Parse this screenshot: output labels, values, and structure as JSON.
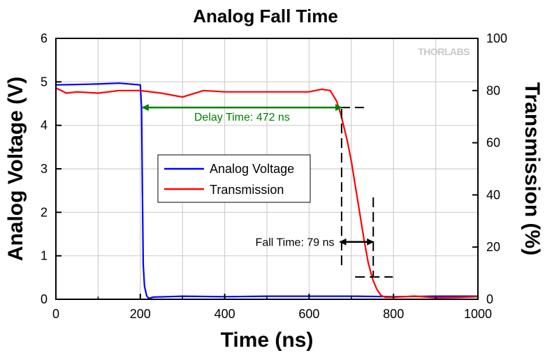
{
  "chart_data": {
    "type": "line",
    "title": "Analog Fall Time",
    "xlabel": "Time (ns)",
    "ylabel": "Analog Voltage (V)",
    "y2label": "Transmission (%)",
    "xlim": [
      0,
      1000
    ],
    "ylim": [
      0,
      6
    ],
    "y2lim": [
      0,
      100
    ],
    "x_ticks": [
      0,
      200,
      400,
      600,
      800,
      1000
    ],
    "y_ticks": [
      0,
      1,
      2,
      3,
      4,
      5,
      6
    ],
    "y2_ticks": [
      0,
      20,
      40,
      60,
      80,
      100
    ],
    "grid": true,
    "legend_position": "center-left",
    "series": [
      {
        "name": "Analog Voltage",
        "axis": "left",
        "color": "#0000ff",
        "x": [
          0,
          50,
          100,
          150,
          200,
          203,
          205,
          207,
          210,
          215,
          220,
          230,
          300,
          400,
          500,
          600,
          700,
          800,
          900,
          1000
        ],
        "y": [
          4.93,
          4.94,
          4.95,
          4.97,
          4.93,
          4.4,
          2.5,
          0.8,
          0.3,
          0.08,
          0.02,
          0.05,
          0.07,
          0.06,
          0.07,
          0.07,
          0.07,
          0.06,
          0.07,
          0.07
        ]
      },
      {
        "name": "Transmission",
        "axis": "right",
        "color": "#ff0000",
        "x": [
          0,
          25,
          50,
          100,
          150,
          200,
          250,
          300,
          350,
          400,
          500,
          550,
          600,
          630,
          650,
          665,
          675,
          690,
          700,
          710,
          720,
          730,
          740,
          750,
          760,
          770,
          780,
          800,
          850,
          900,
          950,
          1000
        ],
        "y": [
          81,
          79,
          79.5,
          79,
          80,
          80,
          79,
          77.5,
          80,
          79.5,
          79.5,
          79.5,
          79.5,
          80.5,
          80,
          76,
          71,
          61,
          53,
          43,
          33,
          23,
          14,
          8,
          4,
          1.5,
          0.8,
          0.8,
          1.2,
          0.6,
          0.7,
          1.0
        ]
      }
    ],
    "annotations": [
      {
        "label": "Delay Time: 472 ns",
        "color": "#008000",
        "x_start": 205,
        "x_end": 677,
        "y2": 73.5
      },
      {
        "label": "Fall Time: 79 ns",
        "color": "#000000",
        "x_start": 673,
        "x_end": 752,
        "y2": 22
      }
    ],
    "watermark": "THORLABS"
  }
}
